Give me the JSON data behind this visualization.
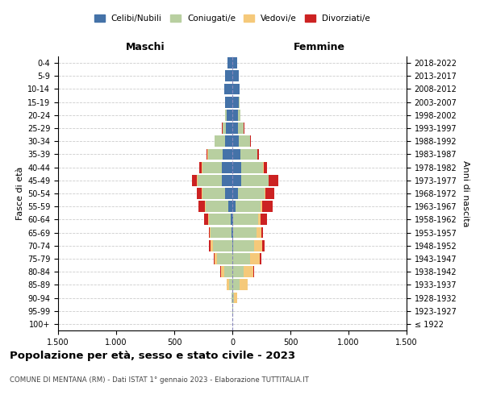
{
  "age_groups": [
    "100+",
    "95-99",
    "90-94",
    "85-89",
    "80-84",
    "75-79",
    "70-74",
    "65-69",
    "60-64",
    "55-59",
    "50-54",
    "45-49",
    "40-44",
    "35-39",
    "30-34",
    "25-29",
    "20-24",
    "15-19",
    "10-14",
    "5-9",
    "0-4"
  ],
  "year_labels": [
    "≤ 1922",
    "1923-1927",
    "1928-1932",
    "1933-1937",
    "1938-1942",
    "1943-1947",
    "1948-1952",
    "1953-1957",
    "1958-1962",
    "1963-1967",
    "1968-1972",
    "1973-1977",
    "1978-1982",
    "1983-1987",
    "1988-1992",
    "1993-1997",
    "1998-2002",
    "2003-2007",
    "2008-2012",
    "2013-2017",
    "2018-2022"
  ],
  "male": {
    "celibi": [
      0,
      0,
      0,
      0,
      0,
      0,
      0,
      5,
      15,
      35,
      60,
      90,
      90,
      80,
      60,
      55,
      50,
      60,
      70,
      60,
      45
    ],
    "coniugati": [
      0,
      0,
      5,
      30,
      70,
      130,
      170,
      180,
      185,
      195,
      200,
      210,
      170,
      130,
      90,
      30,
      15,
      5,
      0,
      0,
      0
    ],
    "vedovi": [
      0,
      0,
      5,
      20,
      30,
      20,
      15,
      8,
      5,
      5,
      3,
      3,
      2,
      2,
      1,
      1,
      0,
      0,
      0,
      0,
      0
    ],
    "divorziati": [
      0,
      0,
      0,
      0,
      5,
      10,
      15,
      10,
      40,
      55,
      45,
      45,
      20,
      10,
      5,
      5,
      0,
      0,
      0,
      0,
      0
    ]
  },
  "female": {
    "nubili": [
      0,
      0,
      0,
      0,
      0,
      0,
      5,
      5,
      10,
      25,
      50,
      75,
      75,
      70,
      55,
      50,
      50,
      55,
      60,
      55,
      40
    ],
    "coniugate": [
      0,
      5,
      15,
      60,
      100,
      155,
      185,
      200,
      210,
      220,
      230,
      235,
      190,
      145,
      100,
      45,
      20,
      5,
      0,
      0,
      0
    ],
    "vedove": [
      0,
      5,
      30,
      70,
      80,
      80,
      70,
      45,
      25,
      15,
      8,
      5,
      3,
      2,
      1,
      1,
      0,
      0,
      0,
      0,
      0
    ],
    "divorziate": [
      0,
      0,
      0,
      0,
      5,
      15,
      20,
      15,
      55,
      85,
      75,
      80,
      30,
      10,
      5,
      5,
      0,
      0,
      0,
      0,
      0
    ]
  },
  "colors": {
    "celibi": "#4472a8",
    "coniugati": "#b8cfa0",
    "vedovi": "#f5c97a",
    "divorziati": "#cc2222"
  },
  "title": "Popolazione per età, sesso e stato civile - 2023",
  "subtitle": "COMUNE DI MENTANA (RM) - Dati ISTAT 1° gennaio 2023 - Elaborazione TUTTITALIA.IT",
  "ylabel_left": "Fasce di età",
  "ylabel_right": "Anni di nascita",
  "xlim": 1500,
  "legend_labels": [
    "Celibi/Nubili",
    "Coniugati/e",
    "Vedovi/e",
    "Divorziati/e"
  ],
  "maschi_label": "Maschi",
  "femmine_label": "Femmine",
  "bg_color": "#ffffff",
  "grid_color": "#cccccc"
}
